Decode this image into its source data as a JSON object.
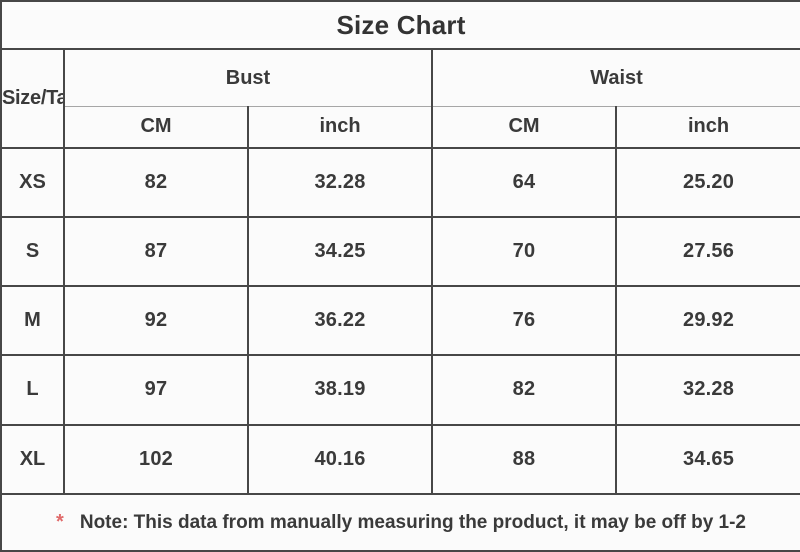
{
  "colors": {
    "background": "#fbfbfb",
    "text": "#3a3a3a",
    "border_dark": "#474747",
    "border_light": "#a6a6a6",
    "note_marker_red": "#e06a6a"
  },
  "chart_data": {
    "type": "table",
    "title": "Size Chart",
    "corner_label": "Size/Tag",
    "column_groups": [
      {
        "label": "Bust",
        "units": [
          "CM",
          "inch"
        ]
      },
      {
        "label": "Waist",
        "units": [
          "CM",
          "inch"
        ]
      }
    ],
    "rows": [
      {
        "size": "XS",
        "bust_cm": "82",
        "bust_inch": "32.28",
        "waist_cm": "64",
        "waist_inch": "25.20"
      },
      {
        "size": "S",
        "bust_cm": "87",
        "bust_inch": "34.25",
        "waist_cm": "70",
        "waist_inch": "27.56"
      },
      {
        "size": "M",
        "bust_cm": "92",
        "bust_inch": "36.22",
        "waist_cm": "76",
        "waist_inch": "29.92"
      },
      {
        "size": "L",
        "bust_cm": "97",
        "bust_inch": "38.19",
        "waist_cm": "82",
        "waist_inch": "32.28"
      },
      {
        "size": "XL",
        "bust_cm": "102",
        "bust_inch": "40.16",
        "waist_cm": "88",
        "waist_inch": "34.65"
      }
    ],
    "note_marker": "*",
    "note": "Note: This data from manually measuring the product, it may be off by 1-2"
  }
}
